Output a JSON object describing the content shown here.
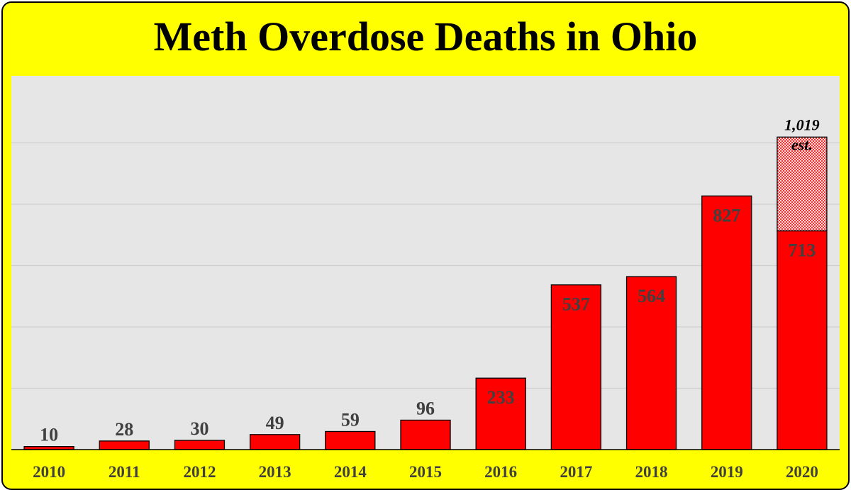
{
  "colors": {
    "background": "#ffff00",
    "plot_area": "#e6e6e6",
    "bar": "#ff0000",
    "estimate_fill": "#e8a0a0",
    "label": "#404040"
  },
  "chart_data": {
    "type": "bar",
    "title": "Meth Overdose Deaths in Ohio",
    "categories": [
      "2010",
      "2011",
      "2012",
      "2013",
      "2014",
      "2015",
      "2016",
      "2017",
      "2018",
      "2019",
      "2020"
    ],
    "series": [
      {
        "values": [
          10,
          28,
          30,
          49,
          59,
          96,
          233,
          537,
          564,
          827,
          713
        ]
      }
    ],
    "value_labels": [
      "10",
      "28",
      "30",
      "49",
      "59",
      "96",
      "233",
      "537",
      "564",
      "827",
      "713"
    ],
    "estimate": {
      "category": "2020",
      "total": 1019,
      "total_label": "1,019",
      "note": "est."
    },
    "ylim": [
      0,
      1250
    ],
    "grid": true,
    "legend": "none"
  }
}
